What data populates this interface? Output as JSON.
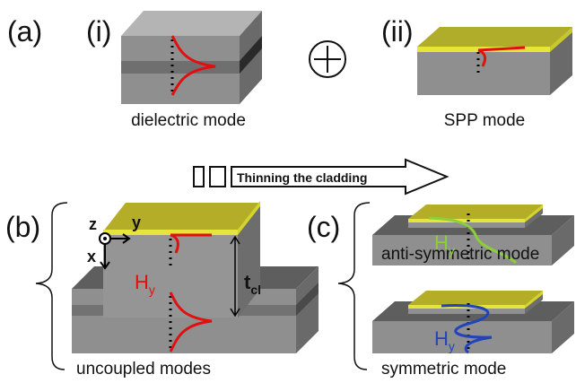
{
  "panel_labels": [
    "(a)",
    "(i)",
    "(ii)",
    "(b)",
    "(c)"
  ],
  "captions": [
    "dielectric mode",
    "SPP mode",
    "uncoupled modes",
    "anti-symmetric mode",
    "symmetric mode"
  ],
  "arrow_label": "Thinning the cladding",
  "axes": {
    "z": "z",
    "y": "y",
    "x": "x"
  },
  "field_symbols": [
    {
      "base": "H",
      "sub": "y"
    },
    {
      "base": "H",
      "sub": "y"
    },
    {
      "base": "H",
      "sub": "y"
    }
  ],
  "thickness": {
    "base": "t",
    "sub": "cl"
  }
}
